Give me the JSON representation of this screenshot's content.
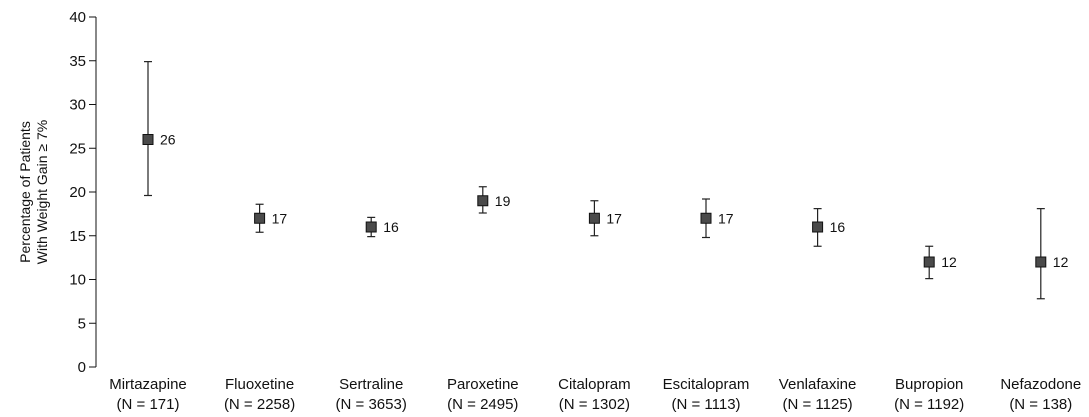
{
  "chart_data": {
    "type": "scatter",
    "ylabel_lines": [
      "Percentage of Patients",
      "With Weight Gain ≥ 7%"
    ],
    "ylim": [
      0,
      40
    ],
    "yticks": [
      0,
      5,
      10,
      15,
      20,
      25,
      30,
      35,
      40
    ],
    "grid": false,
    "categories": [
      {
        "name": "Mirtazapine",
        "n": "(N = 171)"
      },
      {
        "name": "Fluoxetine",
        "n": "(N = 2258)"
      },
      {
        "name": "Sertraline",
        "n": "(N = 3653)"
      },
      {
        "name": "Paroxetine",
        "n": "(N = 2495)"
      },
      {
        "name": "Citalopram",
        "n": "(N = 1302)"
      },
      {
        "name": "Escitalopram",
        "n": "(N = 1113)"
      },
      {
        "name": "Venlafaxine",
        "n": "(N = 1125)"
      },
      {
        "name": "Bupropion",
        "n": "(N = 1192)"
      },
      {
        "name": "Nefazodone",
        "n": "(N = 138)"
      }
    ],
    "values": [
      26,
      17,
      16,
      19,
      17,
      17,
      16,
      12,
      12
    ],
    "ci_low": [
      19.6,
      15.4,
      14.9,
      17.6,
      15.0,
      14.8,
      13.8,
      10.1,
      7.8
    ],
    "ci_high": [
      34.9,
      18.6,
      17.1,
      20.6,
      19.0,
      19.2,
      18.1,
      13.8,
      18.1
    ],
    "data_labels": [
      "26",
      "17",
      "16",
      "19",
      "17",
      "17",
      "16",
      "12",
      "12"
    ]
  }
}
